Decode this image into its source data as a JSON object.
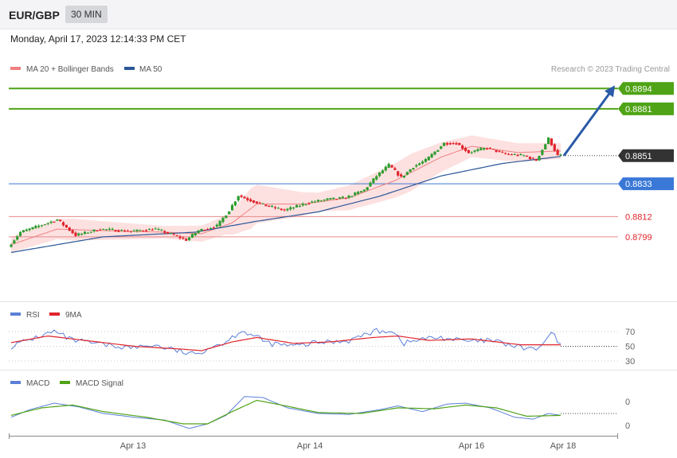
{
  "header": {
    "symbol": "EUR/GBP",
    "timeframe": "30 MIN"
  },
  "datetime": "Monday, April 17, 2023 12:14:33 PM CET",
  "colors": {
    "bull": "#2e9c2e",
    "bear": "#e0242b",
    "ma50": "#2b5797",
    "ma20": "#f08080",
    "band": "#fde1e1",
    "green_level": "#4fa316",
    "blue_level": "#3a78d8",
    "red_level": "#e68a8a",
    "current": "#333333",
    "arrow": "#2a5aa8",
    "rsi": "#5b7fd8",
    "rsi_ma": "#e0242b",
    "macd": "#5b7fd8",
    "macd_signal": "#4fa316"
  },
  "chart_data": [
    {
      "type": "candlestick",
      "title": "",
      "legend": [
        {
          "label": "MA 20 + Bollinger Bands",
          "color": "#f08080"
        },
        {
          "label": "MA 50",
          "color": "#2b5797"
        }
      ],
      "legend_position": "top-left",
      "credit": "Research © 2023 Trading Central",
      "x_ticks": [
        "Apr 13",
        "Apr 14",
        "Apr 16",
        "Apr 18"
      ],
      "ylim": [
        0.87857,
        0.88967
      ],
      "current_price": 0.8851,
      "current_label": "0.8851",
      "levels": [
        {
          "value": 0.8894,
          "label": "0.8894",
          "kind": "resistance"
        },
        {
          "value": 0.8881,
          "label": "0.8881",
          "kind": "resistance"
        },
        {
          "value": 0.8833,
          "label": "0.8833",
          "kind": "support"
        },
        {
          "value": 0.8812,
          "label": "0.8812",
          "kind": "support"
        },
        {
          "value": 0.8799,
          "label": "0.8799",
          "kind": "support"
        }
      ],
      "forecast": {
        "from": 0.8851,
        "to": 0.8896
      },
      "anchors": [
        {
          "t": 0,
          "p": 0.87925
        },
        {
          "t": 4,
          "p": 0.8802
        },
        {
          "t": 10,
          "p": 0.8806
        },
        {
          "t": 16,
          "p": 0.881
        },
        {
          "t": 22,
          "p": 0.88
        },
        {
          "t": 30,
          "p": 0.8804
        },
        {
          "t": 40,
          "p": 0.88025
        },
        {
          "t": 48,
          "p": 0.8804
        },
        {
          "t": 54,
          "p": 0.88
        },
        {
          "t": 58,
          "p": 0.8797
        },
        {
          "t": 62,
          "p": 0.8803
        },
        {
          "t": 68,
          "p": 0.8806
        },
        {
          "t": 72,
          "p": 0.8816
        },
        {
          "t": 75,
          "p": 0.88255
        },
        {
          "t": 78,
          "p": 0.8823
        },
        {
          "t": 84,
          "p": 0.8819
        },
        {
          "t": 90,
          "p": 0.8816
        },
        {
          "t": 98,
          "p": 0.8821
        },
        {
          "t": 104,
          "p": 0.8823
        },
        {
          "t": 110,
          "p": 0.8824
        },
        {
          "t": 116,
          "p": 0.8829
        },
        {
          "t": 120,
          "p": 0.8838
        },
        {
          "t": 124,
          "p": 0.8845
        },
        {
          "t": 128,
          "p": 0.8837
        },
        {
          "t": 132,
          "p": 0.8844
        },
        {
          "t": 136,
          "p": 0.8848
        },
        {
          "t": 142,
          "p": 0.8859
        },
        {
          "t": 146,
          "p": 0.8859
        },
        {
          "t": 150,
          "p": 0.8853
        },
        {
          "t": 156,
          "p": 0.8856
        },
        {
          "t": 162,
          "p": 0.8852
        },
        {
          "t": 168,
          "p": 0.8851
        },
        {
          "t": 172,
          "p": 0.8848
        },
        {
          "t": 176,
          "p": 0.8862
        },
        {
          "t": 179,
          "p": 0.8851
        }
      ],
      "ma50": [
        {
          "t": 0,
          "p": 0.8789
        },
        {
          "t": 30,
          "p": 0.8799
        },
        {
          "t": 60,
          "p": 0.8802
        },
        {
          "t": 80,
          "p": 0.8809
        },
        {
          "t": 100,
          "p": 0.8815
        },
        {
          "t": 120,
          "p": 0.8825
        },
        {
          "t": 140,
          "p": 0.8838
        },
        {
          "t": 160,
          "p": 0.8846
        },
        {
          "t": 179,
          "p": 0.88505
        }
      ],
      "ma20": [
        {
          "t": 0,
          "p": 0.8794
        },
        {
          "t": 15,
          "p": 0.8804
        },
        {
          "t": 30,
          "p": 0.8803
        },
        {
          "t": 50,
          "p": 0.8802
        },
        {
          "t": 62,
          "p": 0.8801
        },
        {
          "t": 72,
          "p": 0.8808
        },
        {
          "t": 80,
          "p": 0.882
        },
        {
          "t": 95,
          "p": 0.882
        },
        {
          "t": 110,
          "p": 0.8824
        },
        {
          "t": 125,
          "p": 0.8835
        },
        {
          "t": 140,
          "p": 0.885
        },
        {
          "t": 150,
          "p": 0.8857
        },
        {
          "t": 165,
          "p": 0.8853
        },
        {
          "t": 179,
          "p": 0.8854
        }
      ],
      "band_width": [
        {
          "t": 0,
          "w": 0.0005
        },
        {
          "t": 20,
          "w": 0.0007
        },
        {
          "t": 50,
          "w": 0.0004
        },
        {
          "t": 70,
          "w": 0.0006
        },
        {
          "t": 78,
          "w": 0.0013
        },
        {
          "t": 100,
          "w": 0.0006
        },
        {
          "t": 130,
          "w": 0.0012
        },
        {
          "t": 150,
          "w": 0.0007
        },
        {
          "t": 179,
          "w": 0.0005
        }
      ]
    },
    {
      "type": "line",
      "legend": [
        {
          "label": "RSI",
          "color": "#5b7fd8"
        },
        {
          "label": "9MA",
          "color": "#e0242b"
        }
      ],
      "y_ticks": [
        "70",
        "50",
        "30"
      ],
      "ylim": [
        25,
        78
      ],
      "current_value": 50,
      "rsi": [
        {
          "t": 0,
          "v": 50
        },
        {
          "t": 8,
          "v": 62
        },
        {
          "t": 14,
          "v": 70
        },
        {
          "t": 20,
          "v": 58
        },
        {
          "t": 30,
          "v": 52
        },
        {
          "t": 40,
          "v": 48
        },
        {
          "t": 46,
          "v": 52
        },
        {
          "t": 54,
          "v": 44
        },
        {
          "t": 60,
          "v": 38
        },
        {
          "t": 64,
          "v": 48
        },
        {
          "t": 70,
          "v": 56
        },
        {
          "t": 75,
          "v": 72
        },
        {
          "t": 78,
          "v": 66
        },
        {
          "t": 84,
          "v": 54
        },
        {
          "t": 92,
          "v": 50
        },
        {
          "t": 100,
          "v": 55
        },
        {
          "t": 110,
          "v": 58
        },
        {
          "t": 118,
          "v": 70
        },
        {
          "t": 124,
          "v": 72
        },
        {
          "t": 128,
          "v": 54
        },
        {
          "t": 134,
          "v": 60
        },
        {
          "t": 140,
          "v": 62
        },
        {
          "t": 146,
          "v": 58
        },
        {
          "t": 150,
          "v": 56
        },
        {
          "t": 156,
          "v": 58
        },
        {
          "t": 160,
          "v": 54
        },
        {
          "t": 166,
          "v": 48
        },
        {
          "t": 172,
          "v": 46
        },
        {
          "t": 176,
          "v": 69
        },
        {
          "t": 179,
          "v": 50
        }
      ],
      "rsi_ma": [
        {
          "t": 0,
          "v": 55
        },
        {
          "t": 12,
          "v": 64
        },
        {
          "t": 24,
          "v": 58
        },
        {
          "t": 40,
          "v": 50
        },
        {
          "t": 56,
          "v": 46
        },
        {
          "t": 62,
          "v": 44
        },
        {
          "t": 72,
          "v": 56
        },
        {
          "t": 80,
          "v": 62
        },
        {
          "t": 92,
          "v": 54
        },
        {
          "t": 104,
          "v": 56
        },
        {
          "t": 118,
          "v": 62
        },
        {
          "t": 126,
          "v": 64
        },
        {
          "t": 136,
          "v": 58
        },
        {
          "t": 150,
          "v": 60
        },
        {
          "t": 166,
          "v": 52
        },
        {
          "t": 179,
          "v": 52
        }
      ]
    },
    {
      "type": "line",
      "legend": [
        {
          "label": "MACD",
          "color": "#5b7fd8"
        },
        {
          "label": "MACD Signal",
          "color": "#4fa316"
        }
      ],
      "y_ticks": [
        "0",
        "0"
      ],
      "ylim": [
        -1.1,
        1.1
      ],
      "current_value": 0,
      "macd": [
        {
          "t": 0,
          "v": -0.2
        },
        {
          "t": 6,
          "v": 0.2
        },
        {
          "t": 14,
          "v": 0.55
        },
        {
          "t": 22,
          "v": 0.35
        },
        {
          "t": 30,
          "v": 0.0
        },
        {
          "t": 40,
          "v": -0.2
        },
        {
          "t": 50,
          "v": -0.35
        },
        {
          "t": 58,
          "v": -0.8
        },
        {
          "t": 64,
          "v": -0.55
        },
        {
          "t": 70,
          "v": -0.1
        },
        {
          "t": 76,
          "v": 0.9
        },
        {
          "t": 82,
          "v": 0.85
        },
        {
          "t": 90,
          "v": 0.3
        },
        {
          "t": 100,
          "v": 0.0
        },
        {
          "t": 110,
          "v": -0.05
        },
        {
          "t": 120,
          "v": 0.2
        },
        {
          "t": 126,
          "v": 0.4
        },
        {
          "t": 134,
          "v": 0.1
        },
        {
          "t": 142,
          "v": 0.5
        },
        {
          "t": 148,
          "v": 0.55
        },
        {
          "t": 156,
          "v": 0.3
        },
        {
          "t": 164,
          "v": -0.2
        },
        {
          "t": 170,
          "v": -0.3
        },
        {
          "t": 175,
          "v": 0.0
        },
        {
          "t": 179,
          "v": -0.1
        }
      ],
      "macd_signal": [
        {
          "t": 0,
          "v": -0.1
        },
        {
          "t": 10,
          "v": 0.3
        },
        {
          "t": 20,
          "v": 0.45
        },
        {
          "t": 30,
          "v": 0.1
        },
        {
          "t": 44,
          "v": -0.2
        },
        {
          "t": 56,
          "v": -0.55
        },
        {
          "t": 64,
          "v": -0.55
        },
        {
          "t": 72,
          "v": 0.1
        },
        {
          "t": 80,
          "v": 0.7
        },
        {
          "t": 88,
          "v": 0.45
        },
        {
          "t": 100,
          "v": 0.05
        },
        {
          "t": 114,
          "v": 0.0
        },
        {
          "t": 126,
          "v": 0.3
        },
        {
          "t": 138,
          "v": 0.25
        },
        {
          "t": 148,
          "v": 0.45
        },
        {
          "t": 158,
          "v": 0.3
        },
        {
          "t": 168,
          "v": -0.15
        },
        {
          "t": 179,
          "v": -0.1
        }
      ]
    }
  ]
}
